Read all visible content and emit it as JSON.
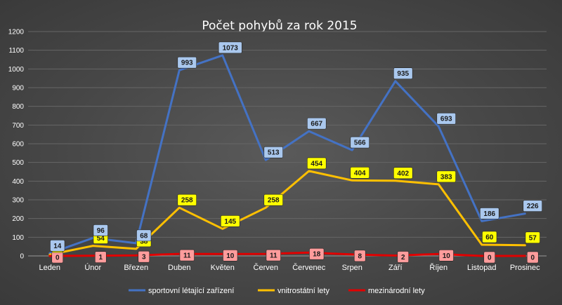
{
  "chart_data": {
    "type": "line",
    "title": "Počet pohybů za rok 2015",
    "categories": [
      "Leden",
      "Únor",
      "Březen",
      "Duben",
      "Květen",
      "Červen",
      "Červenec",
      "Srpen",
      "Září",
      "Říjen",
      "Listopad",
      "Prosinec"
    ],
    "ylim": [
      0,
      1200
    ],
    "yticks": [
      0,
      100,
      200,
      300,
      400,
      500,
      600,
      700,
      800,
      900,
      1000,
      1100,
      1200
    ],
    "grid": true,
    "legend": "bottom",
    "series": [
      {
        "name": "sportovní létající zařízení",
        "color": "#4472c4",
        "label_bg": "#aac8ee",
        "values": [
          14,
          96,
          68,
          993,
          1073,
          513,
          667,
          566,
          935,
          693,
          186,
          226
        ]
      },
      {
        "name": "vnitrostátní lety",
        "color": "#ffc000",
        "label_bg": "#ffff00",
        "values": [
          7,
          54,
          38,
          258,
          145,
          258,
          454,
          404,
          402,
          383,
          60,
          57
        ]
      },
      {
        "name": "mezinárodní lety",
        "color": "#e00000",
        "label_bg": "#ff9c9c",
        "values": [
          0,
          1,
          3,
          11,
          10,
          11,
          18,
          8,
          2,
          10,
          0,
          0
        ]
      }
    ]
  }
}
